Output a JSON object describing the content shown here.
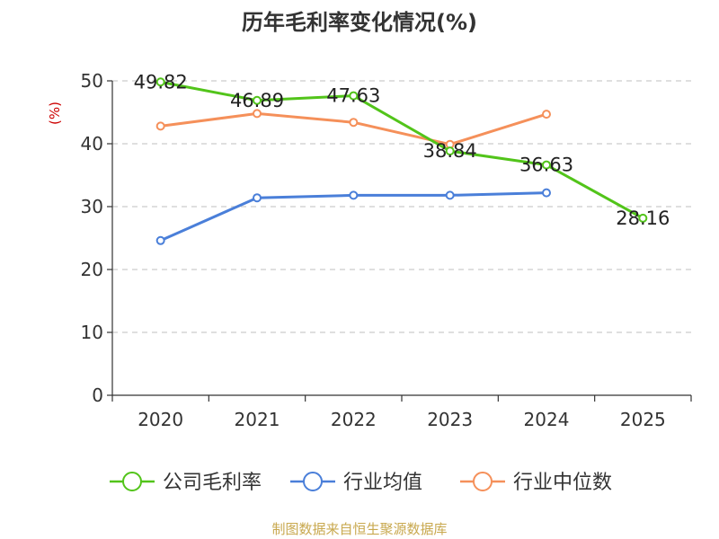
{
  "chart_data": {
    "type": "line",
    "title": "历年毛利率变化情况(%)",
    "ylabel": "(%)",
    "xlabel": "",
    "categories": [
      "2020",
      "2021",
      "2022",
      "2023",
      "2024",
      "2025"
    ],
    "ylim": [
      0,
      50
    ],
    "yticks": [
      0,
      10,
      20,
      30,
      40,
      50
    ],
    "grid": true,
    "legend_position": "bottom",
    "series": [
      {
        "name": "公司毛利率",
        "color": "#52c41a",
        "values": [
          49.82,
          46.89,
          47.63,
          38.84,
          36.63,
          28.16
        ],
        "labels": [
          "49.82",
          "46.89",
          "47.63",
          "38.84",
          "36.63",
          "28.16"
        ]
      },
      {
        "name": "行业均值",
        "color": "#4a7fd9",
        "values": [
          24.6,
          31.4,
          31.8,
          31.8,
          32.2,
          null
        ]
      },
      {
        "name": "行业中位数",
        "color": "#f5905a",
        "values": [
          42.8,
          44.8,
          43.4,
          39.9,
          44.7,
          null
        ]
      }
    ]
  },
  "source": "制图数据来自恒生聚源数据库",
  "colors": {
    "axis": "#333333",
    "grid": "#cccccc",
    "ylabel": "#cc0000",
    "source": "#c8a84e"
  }
}
